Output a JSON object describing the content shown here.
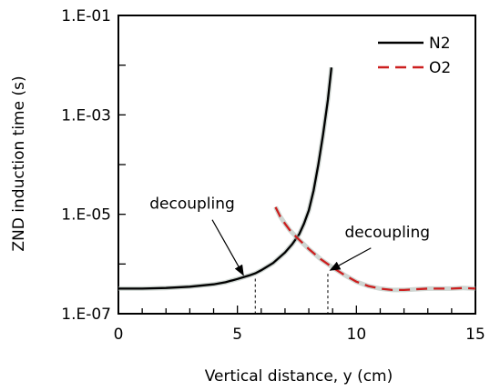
{
  "chart_data": {
    "type": "line",
    "xlabel": "Vertical distance, y (cm)",
    "ylabel": "ZND induction time (s)",
    "xlim": [
      0,
      15
    ],
    "ylim": [
      1e-07,
      0.1
    ],
    "yscale": "log",
    "grid": false,
    "legend_position": "top-right",
    "x_ticks": [
      {
        "value": 0,
        "label": "0"
      },
      {
        "value": 5,
        "label": "5"
      },
      {
        "value": 10,
        "label": "10"
      },
      {
        "value": 15,
        "label": "15"
      }
    ],
    "y_ticks": [
      {
        "value": 1e-07,
        "label": "1.E-07"
      },
      {
        "value": 1e-05,
        "label": "1.E-05"
      },
      {
        "value": 0.001,
        "label": "1.E-03"
      },
      {
        "value": 0.1,
        "label": "1.E-01"
      }
    ],
    "series": [
      {
        "name": "N2",
        "color": "#000000",
        "dash": "solid",
        "x": [
          0,
          1,
          2,
          3,
          4,
          4.5,
          5,
          5.5,
          5.75,
          6,
          6.5,
          7,
          7.3,
          7.6,
          7.8,
          8.0,
          8.2,
          8.4,
          8.6,
          8.8,
          8.95
        ],
        "y": [
          3.2e-07,
          3.2e-07,
          3.3e-07,
          3.5e-07,
          3.9e-07,
          4.3e-07,
          5e-07,
          5.9e-07,
          6.5e-07,
          7.5e-07,
          1.05e-06,
          1.7e-06,
          2.5e-06,
          4e-06,
          6.5e-06,
          1.2e-05,
          3e-05,
          0.0001,
          0.0004,
          0.002,
          0.009
        ]
      },
      {
        "name": "O2",
        "color": "#cc1f1f",
        "dash": "dashed",
        "x": [
          6.6,
          6.8,
          7.0,
          7.2,
          7.5,
          8.0,
          8.5,
          9.0,
          9.5,
          10,
          10.5,
          11,
          11.5,
          12,
          12.5,
          13,
          13.5,
          14,
          14.5,
          15
        ],
        "y": [
          1.4e-05,
          9e-06,
          6.5e-06,
          4.8e-06,
          3.4e-06,
          2e-06,
          1.25e-06,
          8.5e-07,
          6e-07,
          4.4e-07,
          3.6e-07,
          3.2e-07,
          3e-07,
          3e-07,
          3.1e-07,
          3.2e-07,
          3.2e-07,
          3.2e-07,
          3.3e-07,
          3.2e-07
        ]
      }
    ],
    "annotations": [
      {
        "text": "decoupling",
        "text_x": 3.1,
        "text_y": 1e-05,
        "arrow_to_x": 5.25,
        "arrow_to_y": 6e-07,
        "marker_x": 5.75
      },
      {
        "text": "decoupling",
        "text_x": 11.3,
        "text_y": 2.7e-06,
        "arrow_to_x": 8.9,
        "arrow_to_y": 7.5e-07,
        "marker_x": 8.8
      }
    ]
  }
}
